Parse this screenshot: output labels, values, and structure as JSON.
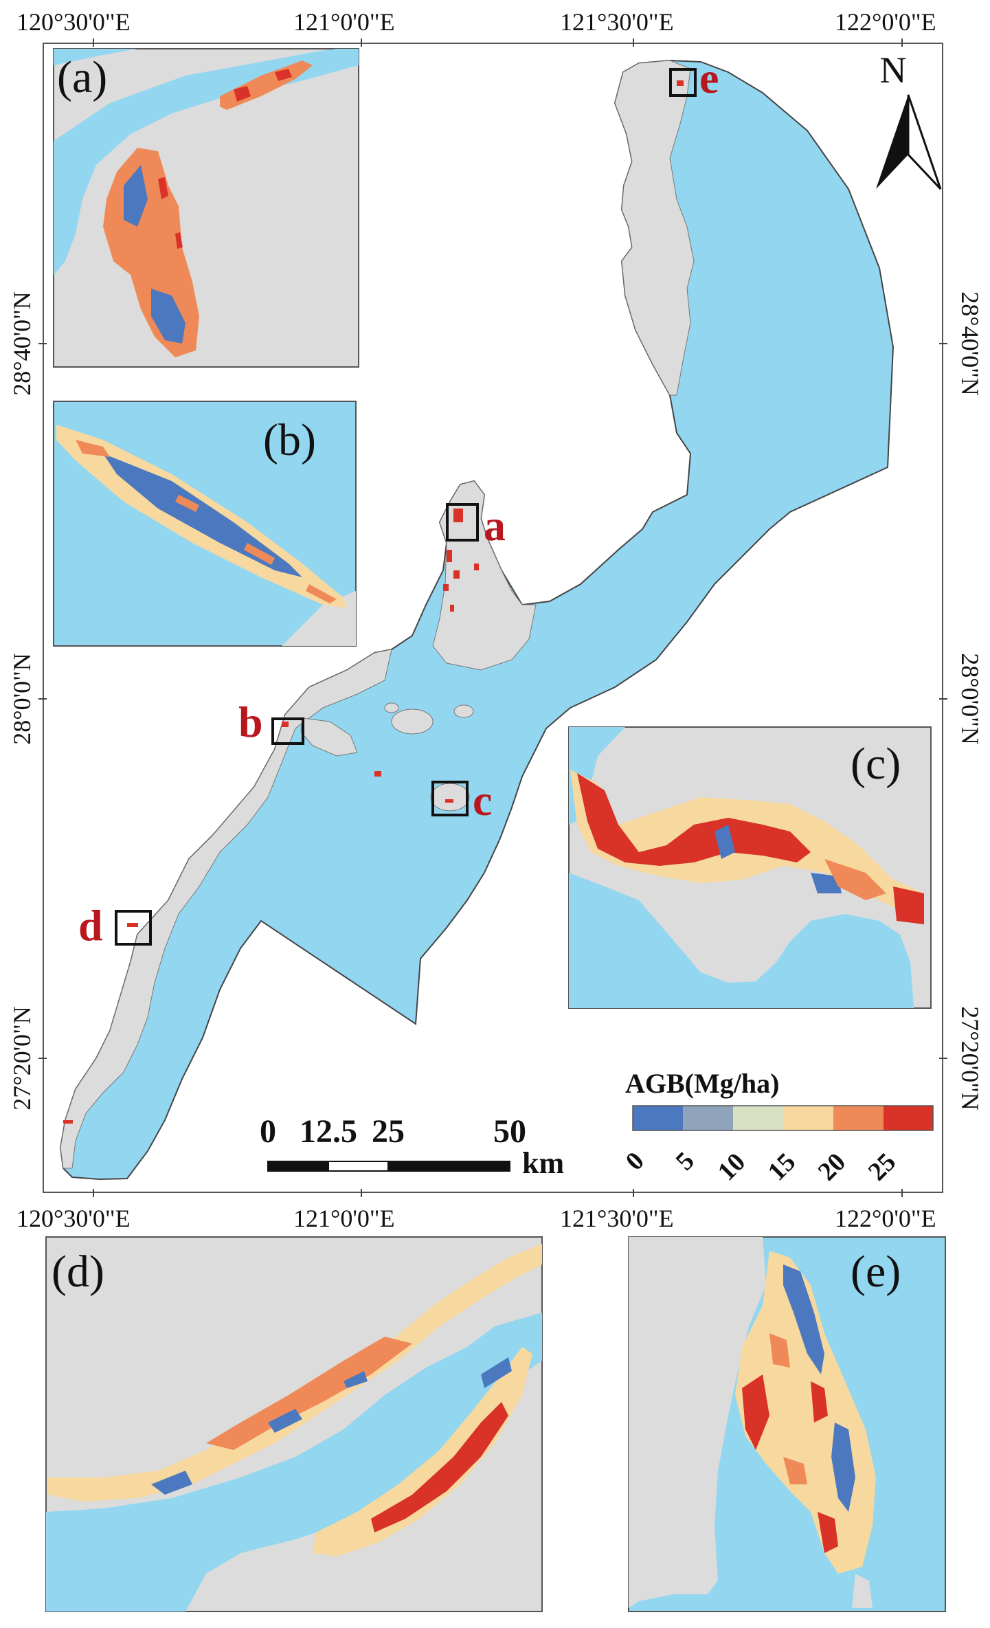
{
  "colors": {
    "water": "#93d6ef",
    "land": "#dcdcdc",
    "frame": "#555555",
    "marker_text": "#b8171d",
    "agb_ramp": [
      "#4b78be",
      "#8fa4bb",
      "#d8e2c3",
      "#f7d9a0",
      "#ef8a58",
      "#d93228"
    ]
  },
  "graticule": {
    "top_labels": [
      "120°30'0\"E",
      "121°0'0\"E",
      "121°30'0\"E",
      "122°0'0\"E"
    ],
    "bottom_labels": [
      "120°30'0\"E",
      "121°0'0\"E",
      "121°30'0\"E",
      "122°0'0\"E"
    ],
    "left_labels": [
      "28°40'0\"N",
      "28°0'0\"N",
      "27°20'0\"N"
    ],
    "right_labels": [
      "28°40'0\"N",
      "28°0'0\"N",
      "27°20'0\"N"
    ]
  },
  "north_arrow": {
    "label": "N",
    "icon": "north-arrow-icon"
  },
  "scale_bar": {
    "ticks": [
      "0",
      "12.5",
      "25",
      "50"
    ],
    "unit": "km"
  },
  "legend": {
    "title": "AGB(Mg/ha)",
    "classes": [
      "0",
      "5",
      "10",
      "15",
      "20",
      "25"
    ]
  },
  "markers": [
    "a",
    "b",
    "c",
    "d",
    "e"
  ],
  "insets": [
    {
      "id": "a",
      "label": "(a)"
    },
    {
      "id": "b",
      "label": "(b)"
    },
    {
      "id": "c",
      "label": "(c)"
    },
    {
      "id": "d",
      "label": "(d)"
    },
    {
      "id": "e",
      "label": "(e)"
    }
  ]
}
